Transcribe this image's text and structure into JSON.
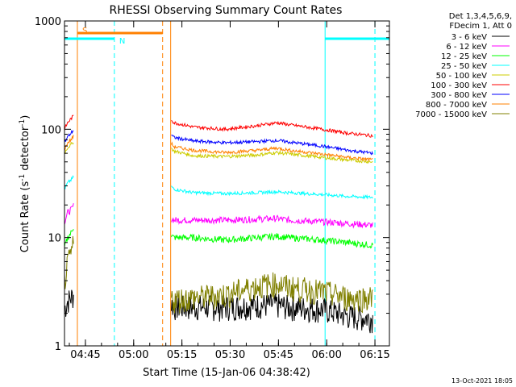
{
  "chart_data": {
    "type": "line",
    "title": "RHESSI Observing Summary Count Rates",
    "xlabel": "Start Time (15-Jan-06 04:38:42)",
    "ylabel_main": "Count Rate (s",
    "ylabel_sup1": "-1",
    "ylabel_mid": " detector",
    "ylabel_sup2": "-1",
    "ylabel_end": ")",
    "yscale": "log",
    "ylim": [
      1,
      1000
    ],
    "xlim_minutes_after_0438": [
      0,
      101
    ],
    "x_tick_labels": [
      "04:45",
      "05:00",
      "05:15",
      "05:30",
      "05:45",
      "06:00",
      "06:15"
    ],
    "x_tick_minutes": [
      6.5,
      21.5,
      36.5,
      51.5,
      66.5,
      81.5,
      96.5
    ],
    "y_tick_labels": [
      "1",
      "10",
      "100",
      "1000"
    ],
    "y_tick_values": [
      1,
      10,
      100,
      1000
    ],
    "legend_header": [
      "Det 1,3,4,5,6,9,",
      "FDecim 1, Att 0"
    ],
    "timestamp": "13-Oct-2021 18:05",
    "flags": [
      {
        "label": "S",
        "color": "#ff8000",
        "start": 4.0,
        "end": 30.5,
        "y": 0.992
      },
      {
        "label": "N",
        "color": "#00ffff",
        "start": 0.0,
        "end": 15.5,
        "y": 0.93
      },
      {
        "label": "",
        "color": "#00ffff",
        "start": 81.0,
        "end": 101.0,
        "y": 0.93
      }
    ],
    "vlines": [
      {
        "x": 4.0,
        "color": "#ff8000",
        "dash": false
      },
      {
        "x": 15.5,
        "color": "#00ffff",
        "dash": true
      },
      {
        "x": 30.5,
        "color": "#ff8000",
        "dash": true
      },
      {
        "x": 33.0,
        "color": "#ff8000",
        "dash": false
      },
      {
        "x": 81.0,
        "color": "#00ffff",
        "dash": false
      },
      {
        "x": 96.5,
        "color": "#00ffff",
        "dash": true
      }
    ],
    "data_gap_minutes": [
      3.0,
      33.0
    ],
    "series": [
      {
        "name": "3 - 6 keV",
        "color": "#000000",
        "x": [
          0,
          1,
          2,
          3,
          33,
          34,
          40,
          50,
          60,
          66,
          70,
          80,
          88,
          96
        ],
        "y": [
          2.2,
          2.6,
          2.8,
          3.0,
          2.5,
          2.3,
          2.3,
          2.3,
          2.4,
          2.4,
          2.3,
          2.2,
          1.9,
          1.8
        ]
      },
      {
        "name": "6 - 12 keV",
        "color": "#ff00ff",
        "x": [
          0,
          1,
          2,
          3,
          33,
          34,
          40,
          50,
          60,
          66,
          70,
          80,
          88,
          96
        ],
        "y": [
          14,
          17,
          18,
          20,
          15,
          14.5,
          14.5,
          14.5,
          14.8,
          15,
          14.5,
          14,
          13.5,
          13
        ]
      },
      {
        "name": "12 - 25 keV",
        "color": "#00ff00",
        "x": [
          0,
          1,
          2,
          3,
          33,
          34,
          40,
          50,
          60,
          66,
          70,
          80,
          88,
          96
        ],
        "y": [
          8,
          10,
          11,
          13,
          10.5,
          10,
          10,
          9.5,
          10,
          10.3,
          10,
          9.5,
          9,
          8.5
        ]
      },
      {
        "name": "25 - 50 keV",
        "color": "#00ffff",
        "x": [
          0,
          1,
          2,
          3,
          33,
          34,
          40,
          50,
          60,
          66,
          70,
          80,
          88,
          96
        ],
        "y": [
          28,
          32,
          34,
          37,
          30,
          28,
          26,
          25.5,
          26,
          26.5,
          26,
          25,
          24,
          23.5
        ]
      },
      {
        "name": "50 - 100 keV",
        "color": "#cccc00",
        "x": [
          0,
          1,
          2,
          3,
          33,
          34,
          40,
          50,
          60,
          66,
          70,
          80,
          88,
          96
        ],
        "y": [
          60,
          68,
          72,
          78,
          68,
          63,
          57,
          56,
          58,
          61,
          59,
          55,
          52,
          50
        ]
      },
      {
        "name": "100 - 300 keV",
        "color": "#ff0000",
        "x": [
          0,
          1,
          2,
          3,
          33,
          34,
          40,
          50,
          60,
          66,
          70,
          80,
          88,
          96
        ],
        "y": [
          100,
          115,
          125,
          135,
          125,
          115,
          105,
          100,
          108,
          115,
          110,
          100,
          92,
          87
        ]
      },
      {
        "name": "300 - 800 keV",
        "color": "#0000ff",
        "x": [
          0,
          1,
          2,
          3,
          33,
          34,
          40,
          50,
          60,
          66,
          70,
          80,
          88,
          96
        ],
        "y": [
          75,
          85,
          92,
          100,
          90,
          84,
          78,
          75,
          77,
          79,
          76,
          70,
          64,
          60
        ]
      },
      {
        "name": "800 - 7000 keV",
        "color": "#ff8000",
        "x": [
          0,
          1,
          2,
          3,
          33,
          34,
          40,
          50,
          60,
          66,
          70,
          80,
          88,
          96
        ],
        "y": [
          65,
          75,
          80,
          88,
          75,
          69,
          64,
          61,
          64,
          67,
          64,
          59,
          55,
          52
        ]
      },
      {
        "name": "7000 - 15000 keV",
        "color": "#808000",
        "x": [
          0,
          1,
          2,
          3,
          33,
          34,
          40,
          50,
          60,
          66,
          70,
          80,
          88,
          96
        ],
        "y": [
          4,
          5.5,
          7,
          9,
          2.8,
          2.7,
          2.8,
          3.0,
          3.6,
          3.8,
          3.5,
          3.2,
          2.8,
          2.8
        ]
      }
    ]
  }
}
